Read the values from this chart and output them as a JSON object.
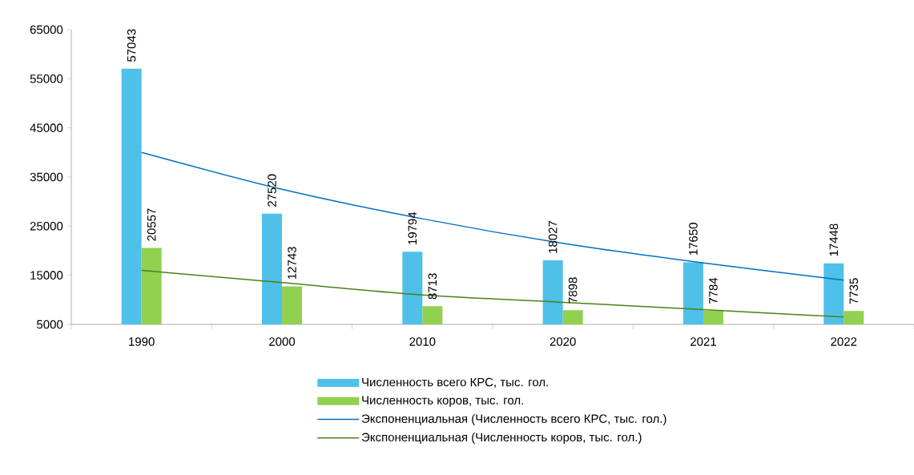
{
  "chart_data": {
    "type": "bar",
    "categories": [
      "1990",
      "2000",
      "2010",
      "2020",
      "2021",
      "2022"
    ],
    "series": [
      {
        "name": "Численность всего КРС, тыс. гол.",
        "color": "#4fc0e8",
        "values": [
          57043,
          27520,
          19794,
          18027,
          17650,
          17448
        ],
        "value_labels": [
          "57043",
          "27520",
          "19794",
          "18027",
          "17650",
          "17448"
        ]
      },
      {
        "name": "Численность коров, тыс. гол.",
        "color": "#92d050",
        "values": [
          20557,
          12743,
          8713,
          7898,
          7784,
          7735
        ],
        "value_labels": [
          "20557",
          "12743",
          "8713",
          "7898",
          "7784",
          "7735"
        ]
      },
      {
        "name": "Экспоненциальная (Численность всего КРС, тыс. гол.)",
        "type": "line",
        "color": "#0070c0",
        "values": [
          40000,
          32500,
          26500,
          21500,
          17500,
          14000
        ]
      },
      {
        "name": "Экспоненциальная (Численность коров, тыс. гол.)",
        "type": "line",
        "color": "#4f7f1a",
        "values": [
          16000,
          13500,
          11000,
          9500,
          8000,
          6500
        ]
      }
    ],
    "ylim": [
      5000,
      65000
    ],
    "yticks": [
      5000,
      15000,
      25000,
      35000,
      45000,
      55000,
      65000
    ],
    "legend": "bottom"
  }
}
